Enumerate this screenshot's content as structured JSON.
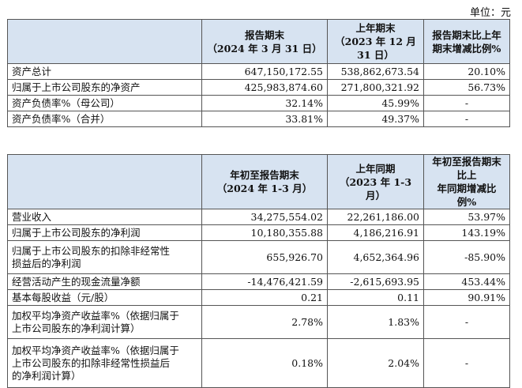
{
  "unit_label": "单位：元",
  "table1": {
    "headers": [
      "",
      "报告期末\n（2024 年 3 月 31 日）",
      "上年期末\n（2023 年 12 月 31 日）",
      "报告期末比上年\n期末增减比例%"
    ],
    "rows": [
      [
        "资产总计",
        "647,150,172.55",
        "538,862,673.54",
        "20.10%"
      ],
      [
        "归属于上市公司股东的净资产",
        "425,983,874.60",
        "271,800,321.92",
        "56.73%"
      ],
      [
        "资产负债率%（母公司）",
        "32.14%",
        "45.99%",
        "-"
      ],
      [
        "资产负债率%（合并）",
        "33.81%",
        "49.37%",
        "-"
      ]
    ]
  },
  "table2": {
    "headers": [
      "",
      "年初至报告期末\n（2024 年 1-3 月）",
      "上年同期\n（2023 年 1-3 月）",
      "年初至报告期末比上\n年同期增减比例%"
    ],
    "rows": [
      [
        "营业收入",
        "34,275,554.02",
        "22,261,186.00",
        "53.97%"
      ],
      [
        "归属于上市公司股东的净利润",
        "10,180,355.88",
        "4,186,216.91",
        "143.19%"
      ],
      [
        "归属于上市公司股东的扣除非经常性\n损益后的净利润",
        "655,926.70",
        "4,652,364.96",
        "-85.90%"
      ],
      [
        "经营活动产生的现金流量净额",
        "-14,476,421.59",
        "-2,615,693.95",
        "453.44%"
      ],
      [
        "基本每股收益（元/股）",
        "0.21",
        "0.11",
        "90.91%"
      ],
      [
        "加权平均净资产收益率%（依据归属于\n上市公司股东的净利润计算）",
        "2.78%",
        "1.83%",
        "-"
      ],
      [
        "加权平均净资产收益率%（依据归属于\n上市公司股东的扣除非经常性损益后\n的净利润计算）",
        "0.18%",
        "2.04%",
        "-"
      ]
    ]
  }
}
